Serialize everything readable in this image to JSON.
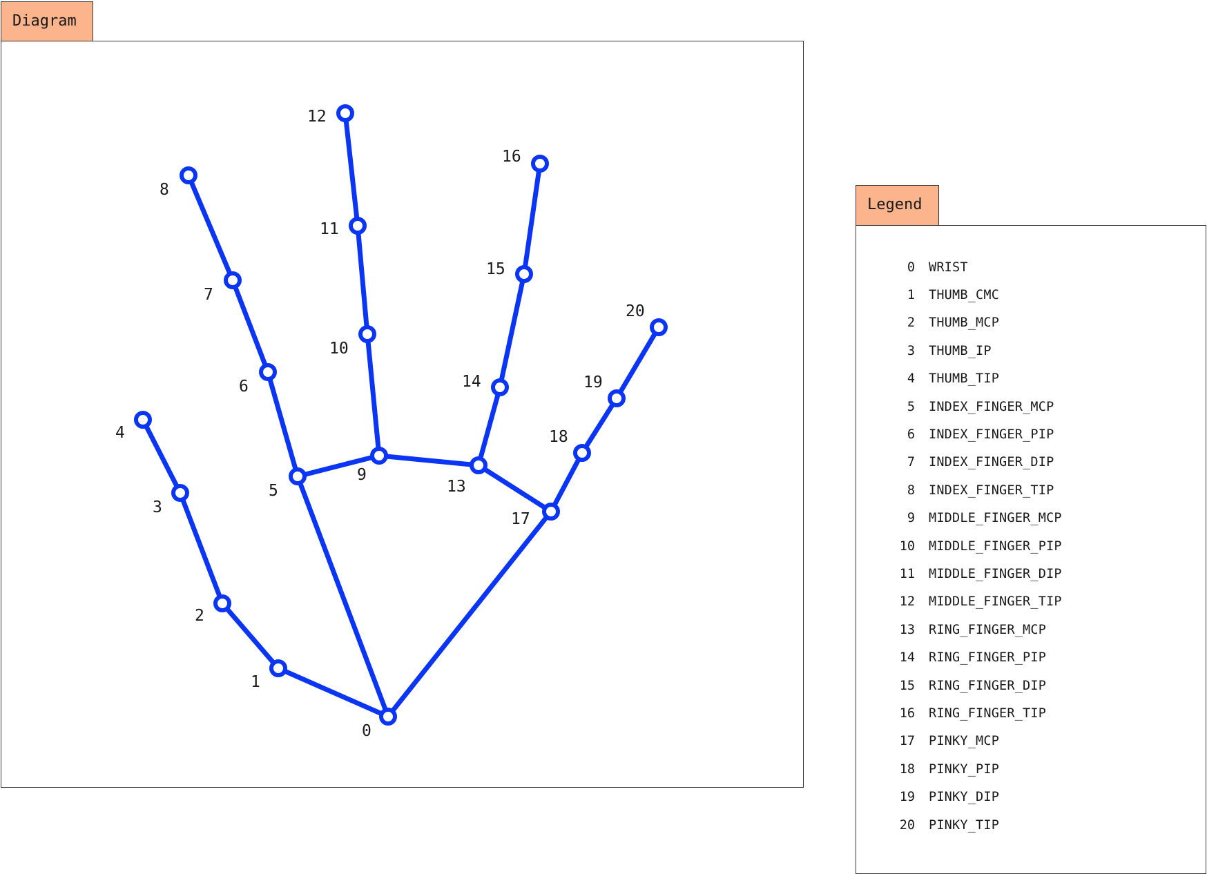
{
  "colors": {
    "line": "#0a35f5",
    "tab_bg": "#fcb48c",
    "border": "#333333"
  },
  "diagram": {
    "tab_label": "Diagram",
    "connections": [
      [
        0,
        1
      ],
      [
        1,
        2
      ],
      [
        2,
        3
      ],
      [
        3,
        4
      ],
      [
        0,
        5
      ],
      [
        5,
        6
      ],
      [
        6,
        7
      ],
      [
        7,
        8
      ],
      [
        5,
        9
      ],
      [
        9,
        10
      ],
      [
        10,
        11
      ],
      [
        11,
        12
      ],
      [
        9,
        13
      ],
      [
        13,
        14
      ],
      [
        14,
        15
      ],
      [
        15,
        16
      ],
      [
        13,
        17
      ],
      [
        0,
        17
      ],
      [
        17,
        18
      ],
      [
        18,
        19
      ],
      [
        19,
        20
      ]
    ],
    "landmarks": [
      {
        "id": "0",
        "label": "0"
      },
      {
        "id": "1",
        "label": "1"
      },
      {
        "id": "2",
        "label": "2"
      },
      {
        "id": "3",
        "label": "3"
      },
      {
        "id": "4",
        "label": "4"
      },
      {
        "id": "5",
        "label": "5"
      },
      {
        "id": "6",
        "label": "6"
      },
      {
        "id": "7",
        "label": "7"
      },
      {
        "id": "8",
        "label": "8"
      },
      {
        "id": "9",
        "label": "9"
      },
      {
        "id": "10",
        "label": "10"
      },
      {
        "id": "11",
        "label": "11"
      },
      {
        "id": "12",
        "label": "12"
      },
      {
        "id": "13",
        "label": "13"
      },
      {
        "id": "14",
        "label": "14"
      },
      {
        "id": "15",
        "label": "15"
      },
      {
        "id": "16",
        "label": "16"
      },
      {
        "id": "17",
        "label": "17"
      },
      {
        "id": "18",
        "label": "18"
      },
      {
        "id": "19",
        "label": "19"
      },
      {
        "id": "20",
        "label": "20"
      }
    ]
  },
  "legend": {
    "tab_label": "Legend",
    "items": [
      {
        "index": "0",
        "name": "WRIST"
      },
      {
        "index": "1",
        "name": "THUMB_CMC"
      },
      {
        "index": "2",
        "name": "THUMB_MCP"
      },
      {
        "index": "3",
        "name": "THUMB_IP"
      },
      {
        "index": "4",
        "name": "THUMB_TIP"
      },
      {
        "index": "5",
        "name": "INDEX_FINGER_MCP"
      },
      {
        "index": "6",
        "name": "INDEX_FINGER_PIP"
      },
      {
        "index": "7",
        "name": "INDEX_FINGER_DIP"
      },
      {
        "index": "8",
        "name": "INDEX_FINGER_TIP"
      },
      {
        "index": "9",
        "name": "MIDDLE_FINGER_MCP"
      },
      {
        "index": "10",
        "name": "MIDDLE_FINGER_PIP"
      },
      {
        "index": "11",
        "name": "MIDDLE_FINGER_DIP"
      },
      {
        "index": "12",
        "name": "MIDDLE_FINGER_TIP"
      },
      {
        "index": "13",
        "name": "RING_FINGER_MCP"
      },
      {
        "index": "14",
        "name": "RING_FINGER_PIP"
      },
      {
        "index": "15",
        "name": "RING_FINGER_DIP"
      },
      {
        "index": "16",
        "name": "RING_FINGER_TIP"
      },
      {
        "index": "17",
        "name": "PINKY_MCP"
      },
      {
        "index": "18",
        "name": "PINKY_PIP"
      },
      {
        "index": "19",
        "name": "PINKY_DIP"
      },
      {
        "index": "20",
        "name": "PINKY_TIP"
      }
    ]
  }
}
